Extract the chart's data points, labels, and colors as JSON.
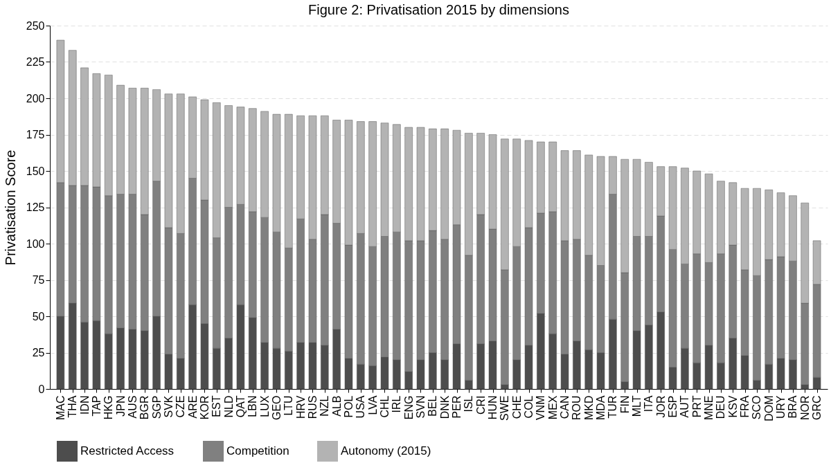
{
  "chart_data": {
    "type": "bar",
    "title": "Figure 2: Privatisation 2015 by dimensions",
    "ylabel": "Privatisation Score",
    "stacked": true,
    "grid": "y",
    "legend": "bottom",
    "categories": [
      "MAC",
      "THA",
      "IDN",
      "TAP",
      "HKG",
      "JPN",
      "AUS",
      "BGR",
      "SGP",
      "SVK",
      "CZE",
      "ARE",
      "KOR",
      "EST",
      "NLD",
      "QAT",
      "LBN",
      "LUX",
      "GEO",
      "LTU",
      "HRV",
      "RUS",
      "NZL",
      "ALB",
      "POL",
      "USA",
      "LVA",
      "CHL",
      "IRL",
      "ENG",
      "SVN",
      "BEL",
      "DNK",
      "PER",
      "ISL",
      "CRI",
      "HUN",
      "SWE",
      "CHE",
      "COL",
      "VNM",
      "MEX",
      "CAN",
      "ROU",
      "MKD",
      "MDA",
      "TUR",
      "FIN",
      "MLT",
      "ITA",
      "JOR",
      "ESP",
      "AUT",
      "PRT",
      "MNE",
      "DEU",
      "KSV",
      "FRA",
      "SCO",
      "DOM",
      "URY",
      "BRA",
      "NOR",
      "GRC"
    ],
    "ylim": [
      0,
      250
    ],
    "yticks": [
      0,
      25,
      50,
      75,
      100,
      125,
      150,
      175,
      200,
      225,
      250
    ],
    "series": [
      {
        "name": "Restricted Access",
        "color": "#4d4d4d",
        "values": [
          50,
          59,
          46,
          47,
          38,
          42,
          41,
          40,
          50,
          24,
          21,
          58,
          45,
          28,
          35,
          58,
          49,
          32,
          28,
          26,
          32,
          32,
          30,
          41,
          21,
          17,
          16,
          22,
          20,
          12,
          20,
          25,
          20,
          31,
          6,
          31,
          33,
          3,
          20,
          30,
          52,
          38,
          24,
          33,
          27,
          25,
          48,
          5,
          40,
          44,
          53,
          15,
          28,
          18,
          30,
          18,
          35,
          23,
          6,
          17,
          21,
          20,
          3,
          8
        ]
      },
      {
        "name": "Competition",
        "color": "#808080",
        "values": [
          92,
          81,
          94,
          92,
          95,
          92,
          93,
          80,
          93,
          87,
          86,
          87,
          85,
          76,
          90,
          69,
          73,
          86,
          80,
          71,
          85,
          71,
          90,
          73,
          78,
          90,
          82,
          83,
          88,
          90,
          82,
          84,
          83,
          82,
          86,
          89,
          77,
          79,
          78,
          81,
          69,
          84,
          78,
          70,
          65,
          60,
          86,
          75,
          65,
          61,
          66,
          81,
          58,
          75,
          57,
          75,
          64,
          59,
          72,
          72,
          70,
          68,
          56,
          64
        ]
      },
      {
        "name": "Autonomy (2015)",
        "color": "#b3b3b3",
        "values": [
          98,
          93,
          81,
          78,
          83,
          75,
          73,
          87,
          63,
          92,
          96,
          56,
          69,
          93,
          70,
          67,
          71,
          73,
          81,
          92,
          71,
          85,
          68,
          71,
          86,
          77,
          86,
          78,
          74,
          78,
          78,
          70,
          76,
          65,
          84,
          56,
          65,
          90,
          74,
          60,
          49,
          48,
          62,
          61,
          69,
          75,
          26,
          78,
          53,
          51,
          34,
          57,
          66,
          57,
          61,
          50,
          43,
          56,
          60,
          48,
          44,
          45,
          69,
          30
        ]
      }
    ]
  }
}
